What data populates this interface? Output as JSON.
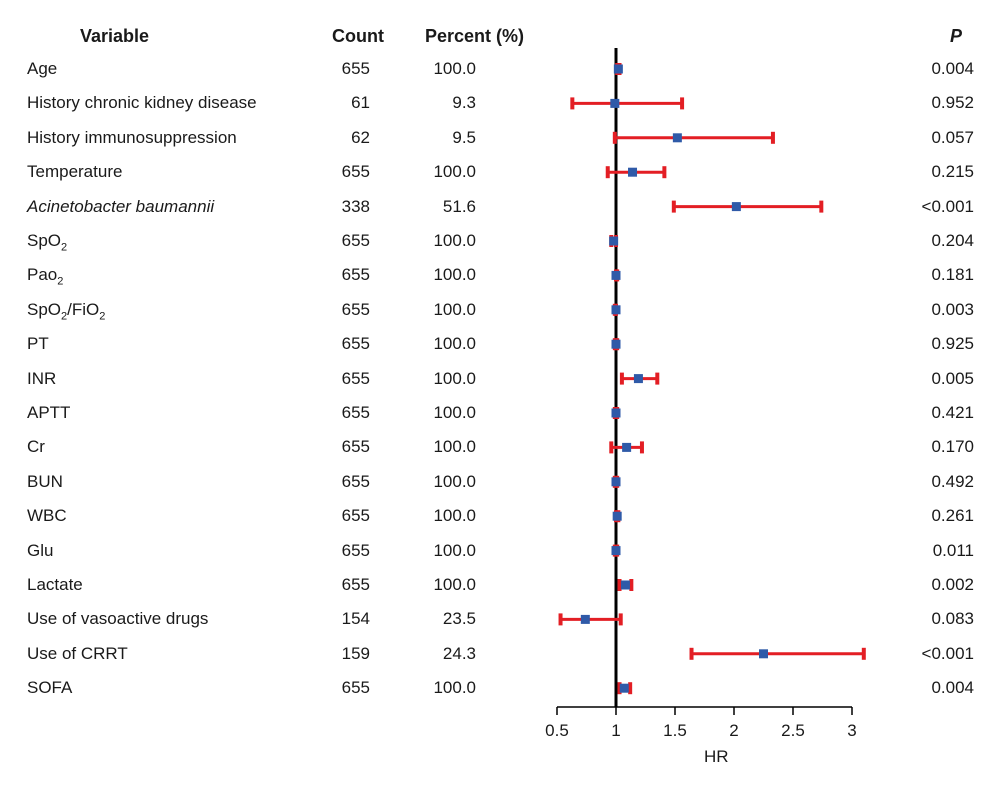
{
  "table": {
    "headers": {
      "variable": "Variable",
      "count": "Count",
      "percent": "Percent (%)",
      "p": "P"
    }
  },
  "chart_data": {
    "type": "forest",
    "xlabel": "HR",
    "xlim": [
      0.5,
      3
    ],
    "xticks": [
      0.5,
      1,
      1.5,
      2,
      2.5,
      3
    ],
    "xtick_labels": [
      "0.5",
      "1",
      "1.5",
      "2",
      "2.5",
      "3"
    ],
    "reference_line": 1,
    "colors": {
      "ci": "#e31e24",
      "point": "#2f5aa8",
      "axis": "#000000"
    },
    "rows": [
      {
        "variable": "Age",
        "sub": "",
        "count": "655",
        "percent": "100.0",
        "p": "0.004",
        "hr": 1.02,
        "lo": 1.01,
        "hi": 1.03
      },
      {
        "variable": "History chronic kidney disease",
        "sub": "",
        "count": "61",
        "percent": "9.3",
        "p": "0.952",
        "hr": 0.99,
        "lo": 0.63,
        "hi": 1.56
      },
      {
        "variable": "History immunosuppression",
        "sub": "",
        "count": "62",
        "percent": "9.5",
        "p": "0.057",
        "hr": 1.52,
        "lo": 0.99,
        "hi": 2.33
      },
      {
        "variable": "Temperature",
        "sub": "",
        "count": "655",
        "percent": "100.0",
        "p": "0.215",
        "hr": 1.14,
        "lo": 0.93,
        "hi": 1.41
      },
      {
        "variable": "Acinetobacter baumannii",
        "sub": "",
        "italic": true,
        "count": "338",
        "percent": "51.6",
        "p": "<0.001",
        "hr": 2.02,
        "lo": 1.49,
        "hi": 2.74
      },
      {
        "variable": "SpO",
        "sub": "2",
        "count": "655",
        "percent": "100.0",
        "p": "0.204",
        "hr": 0.98,
        "lo": 0.96,
        "hi": 1.0
      },
      {
        "variable": "Pao",
        "sub": "2",
        "count": "655",
        "percent": "100.0",
        "p": "0.181",
        "hr": 1.0,
        "lo": 1.0,
        "hi": 1.01
      },
      {
        "variable": "SpO",
        "sub": "2",
        "variable2": "/FiO",
        "sub2": "2",
        "count": "655",
        "percent": "100.0",
        "p": "0.003",
        "hr": 1.0,
        "lo": 0.99,
        "hi": 1.0
      },
      {
        "variable": "PT",
        "sub": "",
        "count": "655",
        "percent": "100.0",
        "p": "0.925",
        "hr": 1.0,
        "lo": 0.99,
        "hi": 1.01
      },
      {
        "variable": "INR",
        "sub": "",
        "count": "655",
        "percent": "100.0",
        "p": "0.005",
        "hr": 1.19,
        "lo": 1.05,
        "hi": 1.35
      },
      {
        "variable": "APTT",
        "sub": "",
        "count": "655",
        "percent": "100.0",
        "p": "0.421",
        "hr": 1.0,
        "lo": 0.99,
        "hi": 1.01
      },
      {
        "variable": "Cr",
        "sub": "",
        "count": "655",
        "percent": "100.0",
        "p": "0.170",
        "hr": 1.09,
        "lo": 0.96,
        "hi": 1.22
      },
      {
        "variable": "BUN",
        "sub": "",
        "count": "655",
        "percent": "100.0",
        "p": "0.492",
        "hr": 1.0,
        "lo": 0.99,
        "hi": 1.01
      },
      {
        "variable": "WBC",
        "sub": "",
        "count": "655",
        "percent": "100.0",
        "p": "0.261",
        "hr": 1.01,
        "lo": 1.0,
        "hi": 1.02
      },
      {
        "variable": "Glu",
        "sub": "",
        "count": "655",
        "percent": "100.0",
        "p": "0.011",
        "hr": 1.0,
        "lo": 0.99,
        "hi": 1.01
      },
      {
        "variable": "Lactate",
        "sub": "",
        "count": "655",
        "percent": "100.0",
        "p": "0.002",
        "hr": 1.08,
        "lo": 1.03,
        "hi": 1.13
      },
      {
        "variable": "Use of vasoactive drugs",
        "sub": "",
        "count": "154",
        "percent": "23.5",
        "p": "0.083",
        "hr": 0.74,
        "lo": 0.53,
        "hi": 1.04
      },
      {
        "variable": "Use of CRRT",
        "sub": "",
        "count": "159",
        "percent": "24.3",
        "p": "<0.001",
        "hr": 2.25,
        "lo": 1.64,
        "hi": 3.1
      },
      {
        "variable": "SOFA",
        "sub": "",
        "count": "655",
        "percent": "100.0",
        "p": "0.004",
        "hr": 1.07,
        "lo": 1.03,
        "hi": 1.12
      }
    ]
  }
}
